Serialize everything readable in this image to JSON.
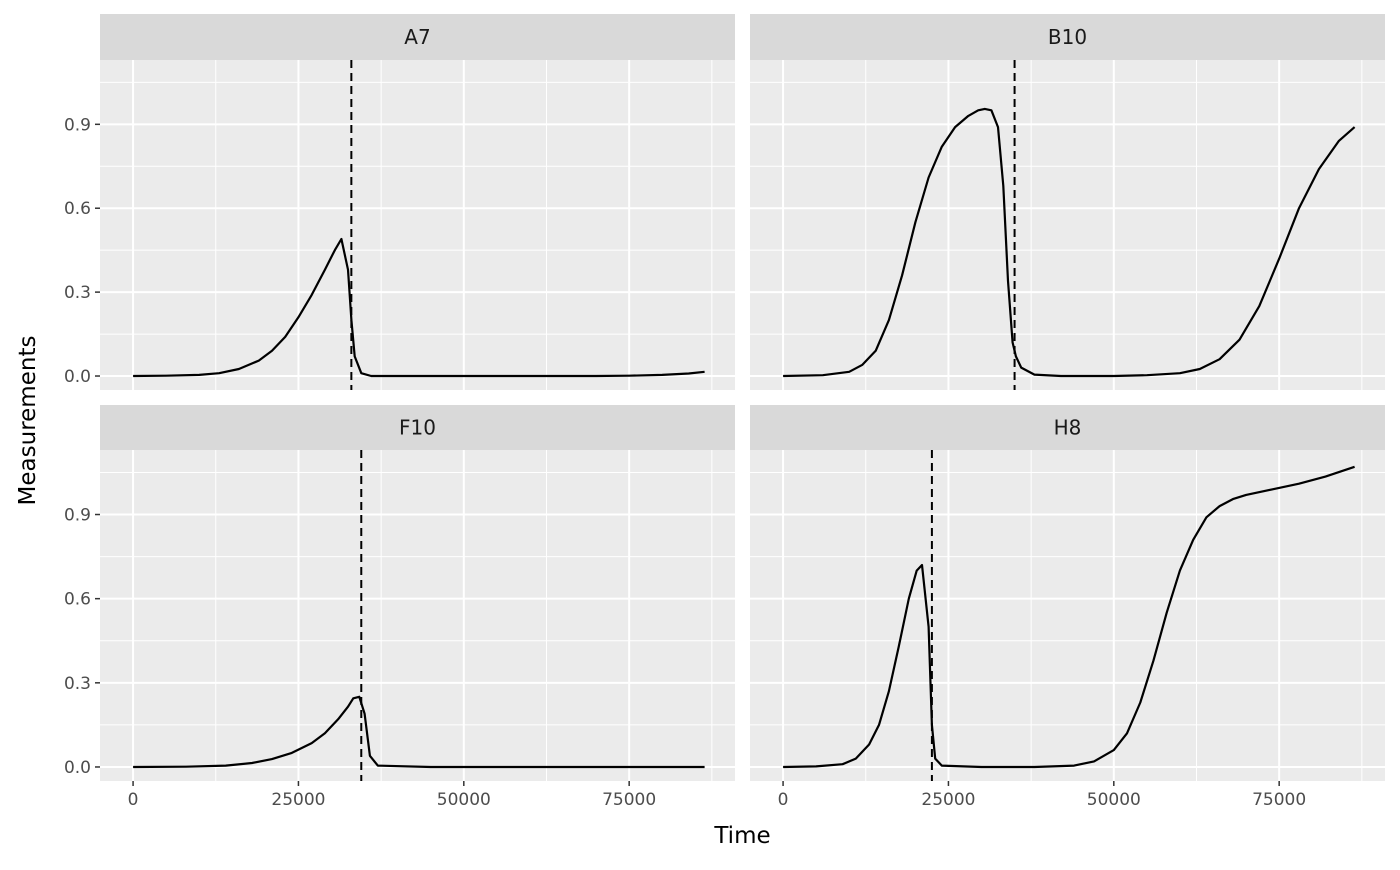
{
  "chart_data": {
    "type": "line",
    "facet_layout": "2x2 grid",
    "xlabel": "Time",
    "ylabel": "Measurements",
    "xlim": [
      -5000,
      91000
    ],
    "ylim": [
      -0.05,
      1.13
    ],
    "x_ticks": [
      0,
      25000,
      50000,
      75000
    ],
    "y_ticks": [
      0.0,
      0.3,
      0.6,
      0.9
    ],
    "x_tick_labels": [
      "0",
      "25000",
      "50000",
      "75000"
    ],
    "y_tick_labels": [
      "0.0",
      "0.3",
      "0.6",
      "0.9"
    ],
    "grid": true,
    "legend": "none",
    "line_color": "#000000",
    "panel_background": "#ebebeb",
    "strip_background": "#d9d9d9",
    "panels": [
      {
        "title": "A7",
        "vline_x": 33000,
        "series": [
          {
            "x": [
              0,
              5000,
              10000,
              13000,
              16000,
              19000,
              21000,
              23000,
              25000,
              27000,
              29000,
              30500,
              31500,
              32500,
              33000,
              33500,
              34500,
              36000,
              40000,
              50000,
              60000,
              70000,
              75000,
              80000,
              84000,
              86400
            ],
            "y": [
              0,
              0.001,
              0.004,
              0.01,
              0.025,
              0.055,
              0.09,
              0.14,
              0.21,
              0.29,
              0.38,
              0.45,
              0.49,
              0.38,
              0.2,
              0.07,
              0.01,
              0,
              0,
              0,
              0,
              0,
              0.001,
              0.004,
              0.009,
              0.015
            ]
          }
        ]
      },
      {
        "title": "B10",
        "vline_x": 35000,
        "series": [
          {
            "x": [
              0,
              6000,
              10000,
              12000,
              14000,
              16000,
              18000,
              20000,
              22000,
              24000,
              26000,
              28000,
              29500,
              30500,
              31500,
              32500,
              33300,
              34000,
              34700,
              35200,
              36000,
              38000,
              42000,
              50000,
              55000,
              60000,
              63000,
              66000,
              69000,
              72000,
              75000,
              78000,
              81000,
              84000,
              86400
            ],
            "y": [
              0,
              0.003,
              0.015,
              0.04,
              0.09,
              0.2,
              0.36,
              0.55,
              0.71,
              0.82,
              0.89,
              0.93,
              0.95,
              0.955,
              0.95,
              0.89,
              0.68,
              0.34,
              0.12,
              0.07,
              0.03,
              0.005,
              0,
              0,
              0.003,
              0.01,
              0.025,
              0.06,
              0.13,
              0.25,
              0.42,
              0.6,
              0.74,
              0.84,
              0.89
            ]
          }
        ]
      },
      {
        "title": "F10",
        "vline_x": 34500,
        "series": [
          {
            "x": [
              0,
              8000,
              14000,
              18000,
              21000,
              24000,
              27000,
              29000,
              31000,
              32500,
              33300,
              34200,
              35000,
              35800,
              37000,
              45000,
              60000,
              75000,
              86400
            ],
            "y": [
              0,
              0.001,
              0.005,
              0.014,
              0.028,
              0.05,
              0.085,
              0.12,
              0.17,
              0.215,
              0.245,
              0.25,
              0.19,
              0.04,
              0.005,
              0,
              0,
              0,
              0
            ]
          }
        ]
      },
      {
        "title": "H8",
        "vline_x": 22500,
        "series": [
          {
            "x": [
              0,
              5000,
              9000,
              11000,
              13000,
              14500,
              16000,
              17500,
              19000,
              20200,
              21000,
              22000,
              22500,
              23000,
              24000,
              30000,
              38000,
              44000,
              47000,
              50000,
              52000,
              54000,
              56000,
              58000,
              60000,
              62000,
              64000,
              66000,
              68000,
              70000,
              74000,
              78000,
              82000,
              86400
            ],
            "y": [
              0,
              0.002,
              0.01,
              0.03,
              0.08,
              0.15,
              0.27,
              0.43,
              0.6,
              0.7,
              0.72,
              0.5,
              0.15,
              0.03,
              0.005,
              0,
              0,
              0.005,
              0.02,
              0.06,
              0.12,
              0.23,
              0.38,
              0.55,
              0.7,
              0.81,
              0.89,
              0.93,
              0.955,
              0.97,
              0.99,
              1.01,
              1.035,
              1.07
            ]
          }
        ]
      }
    ]
  }
}
